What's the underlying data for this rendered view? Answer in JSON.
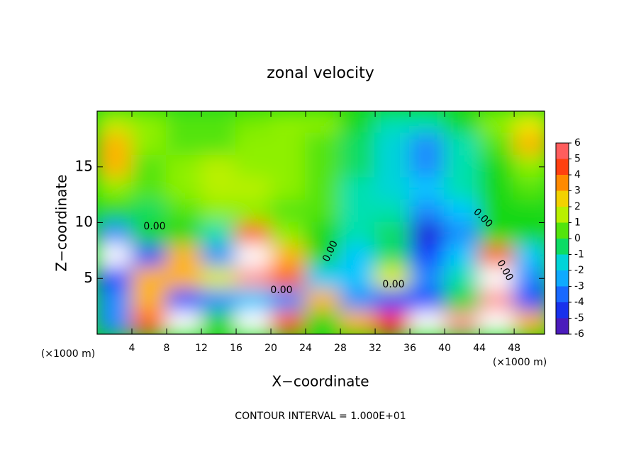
{
  "chart_data": {
    "type": "contourf",
    "title": "zonal velocity",
    "xlabel": "X−coordinate",
    "ylabel": "Z−coordinate",
    "x_unit": "(×1000 m)",
    "subtitle": "CONTOUR INTERVAL = 1.000E+01",
    "contour_labels": [
      "0.00",
      "0.00",
      "0.00",
      "0.00",
      "0.00",
      "0.00"
    ],
    "xlim": [
      0,
      51.5
    ],
    "ylim": [
      0,
      20
    ],
    "xticks": [
      4,
      8,
      12,
      16,
      20,
      24,
      28,
      32,
      36,
      40,
      44,
      48
    ],
    "yticks": [
      5,
      10,
      15
    ],
    "x": [
      2,
      6,
      10,
      14,
      18,
      22,
      26,
      30,
      34,
      38,
      42,
      46,
      50
    ],
    "z": [
      19,
      17,
      15,
      13,
      11,
      9,
      7,
      5,
      3,
      1
    ],
    "values": [
      [
        1.5,
        1,
        0.5,
        0.5,
        0.8,
        1,
        1,
        0,
        -1,
        -1,
        0,
        1,
        2
      ],
      [
        3,
        1,
        0.5,
        0.5,
        1,
        1,
        0.5,
        -0.5,
        -1.5,
        -3,
        -1,
        0.5,
        3
      ],
      [
        3,
        0.5,
        1,
        1.5,
        1,
        1,
        0.5,
        -0.5,
        -1.5,
        -3,
        -1,
        0,
        1
      ],
      [
        1,
        0.5,
        1,
        1.5,
        1.5,
        1,
        0.5,
        -1,
        -1.5,
        -2,
        -1,
        0,
        0.5
      ],
      [
        0,
        -0.5,
        0.5,
        1,
        1,
        0.5,
        0.5,
        -1,
        -1,
        -3,
        -2,
        0,
        0
      ],
      [
        -3,
        0,
        0,
        -1,
        4,
        1,
        0,
        -1,
        -0.5,
        -5,
        -3,
        0,
        0
      ],
      [
        -7,
        -4,
        3,
        -3,
        7,
        3,
        0,
        -2,
        -0.5,
        -4,
        -2,
        4,
        -2
      ],
      [
        -4,
        3,
        3,
        2,
        6,
        4,
        -2,
        -2,
        2,
        -3,
        -1,
        7,
        -3
      ],
      [
        -3,
        3,
        -4,
        -3,
        -2,
        -3,
        3,
        -3,
        -4,
        -4,
        0,
        6,
        -4
      ],
      [
        -3,
        4,
        -7,
        0,
        7,
        4,
        0,
        3,
        5,
        7,
        6,
        7,
        3
      ]
    ],
    "colorbar": {
      "ticks": [
        -6,
        -5,
        -4,
        -3,
        -2,
        -1,
        0,
        1,
        2,
        3,
        4,
        5,
        6
      ],
      "colors": [
        "#7a1aa0",
        "#1c1cd8",
        "#1446ff",
        "#1e8cff",
        "#00c8ff",
        "#00e0b0",
        "#18d818",
        "#8ef000",
        "#e4f000",
        "#ffb400",
        "#ff6000",
        "#ff2020",
        "#ff9a9a"
      ]
    }
  }
}
